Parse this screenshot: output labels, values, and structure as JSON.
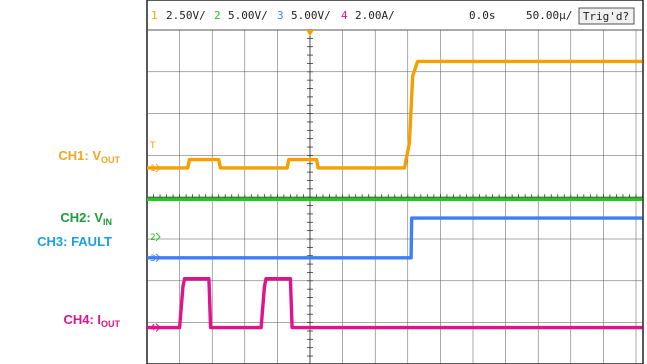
{
  "header": {
    "ch1": {
      "num": "1",
      "scale": "2.50V/"
    },
    "ch2": {
      "num": "2",
      "scale": "5.00V/"
    },
    "ch3": {
      "num": "3",
      "scale": "5.00V/"
    },
    "ch4": {
      "num": "4",
      "scale": "2.00A/"
    },
    "time_offset": "0.0s",
    "timebase": "50.00µ/",
    "trigger_status": "Trig'd?"
  },
  "labels": {
    "ch1": {
      "main": "CH1: V",
      "sub": "OUT"
    },
    "ch2": {
      "main": "CH2: V",
      "sub": "IN"
    },
    "ch3": {
      "main": "CH3: FAULT",
      "sub": ""
    },
    "ch4": {
      "main": "CH4: I",
      "sub": "OUT"
    }
  },
  "colors": {
    "ch1": "#f5a000",
    "ch2": "#1fc81f",
    "ch3": "#3d7ff5",
    "ch4": "#e0138c",
    "grid": "#555555"
  },
  "chart_data": {
    "type": "line",
    "grid": true,
    "divisions": {
      "x": 10,
      "y": 8
    },
    "x_unit": "div",
    "y_unit": "div",
    "series": [
      {
        "key": "ch1",
        "name": "CH1: VOUT",
        "points": [
          [
            0,
            4.7
          ],
          [
            1.25,
            4.7
          ],
          [
            1.3,
            4.9
          ],
          [
            2.2,
            4.9
          ],
          [
            2.25,
            4.7
          ],
          [
            4.3,
            4.7
          ],
          [
            4.35,
            4.9
          ],
          [
            5.2,
            4.9
          ],
          [
            5.25,
            4.7
          ],
          [
            7.9,
            4.7
          ],
          [
            8.05,
            5.3
          ],
          [
            8.15,
            6.9
          ],
          [
            8.3,
            7.25
          ],
          [
            15.2,
            7.25
          ]
        ]
      },
      {
        "key": "ch2",
        "name": "CH2: VIN",
        "points": [
          [
            0,
            3.95
          ],
          [
            15.2,
            3.95
          ]
        ]
      },
      {
        "key": "ch3",
        "name": "CH3: FAULT",
        "points": [
          [
            0,
            2.55
          ],
          [
            8.1,
            2.55
          ],
          [
            8.12,
            3.5
          ],
          [
            15.2,
            3.5
          ]
        ]
      },
      {
        "key": "ch4",
        "name": "CH4: IOUT",
        "points": [
          [
            0,
            0.88
          ],
          [
            1.0,
            0.88
          ],
          [
            1.1,
            1.85
          ],
          [
            1.15,
            2.05
          ],
          [
            1.9,
            2.05
          ],
          [
            1.95,
            0.88
          ],
          [
            3.5,
            0.88
          ],
          [
            3.6,
            1.85
          ],
          [
            3.65,
            2.05
          ],
          [
            4.4,
            2.05
          ],
          [
            4.45,
            0.88
          ],
          [
            15.2,
            0.88
          ]
        ]
      }
    ],
    "ground_markers": [
      {
        "key": "ch1",
        "num": "1",
        "y": 4.7
      },
      {
        "key": "ch2",
        "num": "2",
        "y": 3.05
      },
      {
        "key": "ch3",
        "num": "3",
        "y": 2.55
      },
      {
        "key": "ch4",
        "num": "4",
        "y": 0.88
      }
    ],
    "trigger_level": {
      "key": "ch1",
      "label": "T",
      "y": 5.25
    },
    "trigger_position_x": 5.0
  }
}
